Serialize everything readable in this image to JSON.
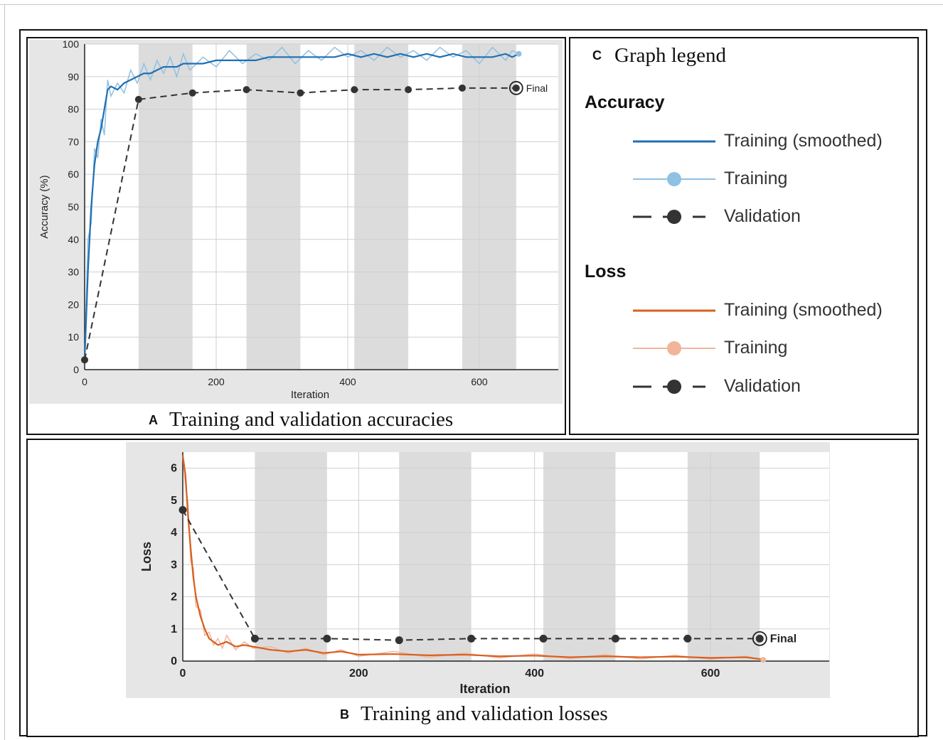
{
  "panels": {
    "a": {
      "letter": "A",
      "caption": "Training and validation accuracies"
    },
    "b": {
      "letter": "B",
      "caption": "Training and validation losses"
    },
    "c": {
      "letter": "C",
      "caption": "Graph legend"
    }
  },
  "legend": {
    "accuracy_heading": "Accuracy",
    "loss_heading": "Loss",
    "accuracy_items": [
      {
        "label": "Training (smoothed)",
        "color": "#1f6fb4"
      },
      {
        "label": "Training",
        "color": "#8fc1e3"
      },
      {
        "label": "Validation",
        "color": "#333333"
      }
    ],
    "loss_items": [
      {
        "label": "Training (smoothed)",
        "color": "#d95f1e"
      },
      {
        "label": "Training",
        "color": "#f0b59a"
      },
      {
        "label": "Validation",
        "color": "#333333"
      }
    ]
  },
  "chart_data": [
    {
      "type": "line",
      "xlabel": "Iteration",
      "ylabel": "Accuracy (%)",
      "xlim": [
        0,
        720
      ],
      "ylim": [
        0,
        100
      ],
      "xticks": [
        0,
        200,
        400,
        600
      ],
      "yticks": [
        0,
        10,
        20,
        30,
        40,
        50,
        60,
        70,
        80,
        90,
        100
      ],
      "epoch_bands": [
        [
          82,
          164
        ],
        [
          246,
          328
        ],
        [
          410,
          492
        ],
        [
          574,
          656
        ]
      ],
      "final_label": "Final",
      "series": [
        {
          "role": "training-smoothed",
          "color": "#1f6fb4",
          "x": [
            0,
            5,
            10,
            15,
            20,
            25,
            30,
            35,
            40,
            50,
            60,
            70,
            80,
            90,
            100,
            110,
            120,
            130,
            140,
            150,
            160,
            180,
            200,
            220,
            240,
            260,
            280,
            300,
            320,
            340,
            360,
            380,
            400,
            420,
            440,
            460,
            480,
            500,
            520,
            540,
            560,
            580,
            600,
            620,
            640,
            650,
            660
          ],
          "y": [
            3,
            30,
            50,
            63,
            70,
            74,
            80,
            86,
            87,
            86,
            88,
            89,
            90,
            91,
            91,
            92,
            93,
            93,
            93,
            94,
            94,
            94,
            95,
            95,
            95,
            95,
            96,
            96,
            96,
            96,
            96,
            96,
            97,
            96,
            97,
            96,
            97,
            96,
            97,
            96,
            97,
            96,
            96,
            96,
            97,
            96,
            97
          ]
        },
        {
          "role": "training",
          "color": "#8fc1e3",
          "x": [
            0,
            5,
            10,
            15,
            20,
            25,
            30,
            35,
            40,
            50,
            60,
            70,
            80,
            90,
            100,
            110,
            120,
            130,
            140,
            150,
            160,
            180,
            200,
            220,
            240,
            260,
            280,
            300,
            320,
            340,
            360,
            380,
            400,
            420,
            440,
            460,
            480,
            500,
            520,
            540,
            560,
            580,
            600,
            620,
            640,
            650,
            660
          ],
          "y": [
            3,
            40,
            45,
            68,
            65,
            77,
            72,
            89,
            84,
            88,
            85,
            92,
            88,
            94,
            89,
            95,
            91,
            96,
            90,
            97,
            92,
            96,
            93,
            98,
            94,
            97,
            95,
            99,
            94,
            98,
            95,
            99,
            96,
            98,
            95,
            99,
            96,
            98,
            95,
            99,
            96,
            98,
            94,
            99,
            95,
            98,
            97
          ]
        },
        {
          "role": "validation",
          "color": "#333333",
          "x": [
            0,
            82,
            164,
            246,
            328,
            410,
            492,
            574,
            656
          ],
          "y": [
            3,
            83,
            85,
            86,
            85,
            86,
            86,
            86.5,
            86.5
          ]
        }
      ]
    },
    {
      "type": "line",
      "xlabel": "Iteration",
      "ylabel": "Loss",
      "xlim": [
        0,
        735
      ],
      "ylim": [
        0,
        6.5
      ],
      "xticks": [
        0,
        200,
        400,
        600
      ],
      "yticks": [
        0,
        1,
        2,
        3,
        4,
        5,
        6
      ],
      "epoch_bands": [
        [
          82,
          164
        ],
        [
          246,
          328
        ],
        [
          410,
          492
        ],
        [
          574,
          656
        ]
      ],
      "final_label": "Final",
      "series": [
        {
          "role": "training-smoothed",
          "color": "#d95f1e",
          "x": [
            0,
            3,
            6,
            9,
            12,
            15,
            20,
            25,
            30,
            35,
            40,
            45,
            50,
            60,
            70,
            80,
            100,
            120,
            140,
            160,
            180,
            200,
            240,
            280,
            320,
            360,
            400,
            440,
            480,
            520,
            560,
            600,
            640,
            660
          ],
          "y": [
            6.4,
            5.8,
            4.5,
            3.5,
            2.6,
            2.0,
            1.4,
            1.0,
            0.7,
            0.6,
            0.5,
            0.55,
            0.6,
            0.45,
            0.5,
            0.45,
            0.35,
            0.3,
            0.35,
            0.25,
            0.3,
            0.2,
            0.22,
            0.18,
            0.2,
            0.15,
            0.17,
            0.12,
            0.15,
            0.12,
            0.14,
            0.1,
            0.12,
            0.05
          ]
        },
        {
          "role": "training",
          "color": "#f0b59a",
          "x": [
            0,
            3,
            6,
            9,
            12,
            15,
            20,
            25,
            30,
            35,
            40,
            45,
            50,
            60,
            70,
            80,
            100,
            120,
            140,
            160,
            180,
            200,
            240,
            280,
            320,
            360,
            400,
            440,
            480,
            520,
            560,
            600,
            640,
            660
          ],
          "y": [
            6.4,
            5.5,
            4.9,
            3.1,
            2.9,
            1.7,
            1.6,
            0.8,
            0.9,
            0.5,
            0.7,
            0.4,
            0.8,
            0.35,
            0.6,
            0.4,
            0.45,
            0.25,
            0.4,
            0.2,
            0.35,
            0.15,
            0.3,
            0.12,
            0.25,
            0.1,
            0.22,
            0.08,
            0.2,
            0.07,
            0.18,
            0.06,
            0.15,
            0.04
          ]
        },
        {
          "role": "validation",
          "color": "#333333",
          "x": [
            0,
            82,
            164,
            246,
            328,
            410,
            492,
            574,
            656
          ],
          "y": [
            4.7,
            0.7,
            0.7,
            0.65,
            0.7,
            0.7,
            0.7,
            0.7,
            0.7
          ]
        }
      ]
    }
  ]
}
